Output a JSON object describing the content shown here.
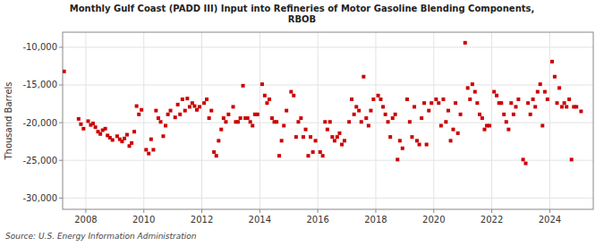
{
  "chart_data": {
    "type": "scatter",
    "title": "Monthly Gulf Coast (PADD III) Input into Refineries of Motor Gasoline Blending Components,\nRBOB",
    "ylabel": "Thousand Barrels",
    "annotations": [
      "Source: U.S. Energy Information Administration"
    ],
    "color": "#cc0000",
    "marker": "square",
    "grid": true,
    "xlim": [
      2007.2,
      2025.5
    ],
    "ylim": [
      -31500,
      -8000
    ],
    "xticks": [
      2008,
      2010,
      2012,
      2014,
      2016,
      2018,
      2020,
      2022,
      2024
    ],
    "yticks": [
      {
        "value": -30000,
        "label": "-30,000"
      },
      {
        "value": -25000,
        "label": "-25,000"
      },
      {
        "value": -20000,
        "label": "-20,000"
      },
      {
        "value": -15000,
        "label": "-15,000"
      },
      {
        "value": -10000,
        "label": "-10,000"
      }
    ],
    "x": [
      2007.25,
      2007.75,
      2007.83,
      2007.92,
      2008.08,
      2008.17,
      2008.25,
      2008.33,
      2008.42,
      2008.5,
      2008.58,
      2008.67,
      2008.75,
      2008.83,
      2008.92,
      2009.08,
      2009.17,
      2009.25,
      2009.33,
      2009.42,
      2009.5,
      2009.58,
      2009.67,
      2009.75,
      2009.83,
      2009.92,
      2010.08,
      2010.17,
      2010.25,
      2010.33,
      2010.42,
      2010.5,
      2010.58,
      2010.67,
      2010.75,
      2010.83,
      2010.92,
      2011.08,
      2011.17,
      2011.25,
      2011.33,
      2011.42,
      2011.5,
      2011.58,
      2011.67,
      2011.75,
      2011.83,
      2011.92,
      2012.08,
      2012.17,
      2012.25,
      2012.33,
      2012.42,
      2012.5,
      2012.58,
      2012.67,
      2012.75,
      2012.83,
      2012.92,
      2013.08,
      2013.17,
      2013.25,
      2013.33,
      2013.42,
      2013.5,
      2013.58,
      2013.67,
      2013.75,
      2013.83,
      2013.92,
      2014.08,
      2014.17,
      2014.25,
      2014.33,
      2014.42,
      2014.5,
      2014.58,
      2014.67,
      2014.75,
      2014.83,
      2014.92,
      2015.08,
      2015.17,
      2015.25,
      2015.33,
      2015.42,
      2015.5,
      2015.58,
      2015.67,
      2015.75,
      2015.83,
      2015.92,
      2016.08,
      2016.17,
      2016.25,
      2016.33,
      2016.42,
      2016.5,
      2016.58,
      2016.67,
      2016.75,
      2016.83,
      2016.92,
      2017.08,
      2017.17,
      2017.25,
      2017.33,
      2017.42,
      2017.5,
      2017.58,
      2017.67,
      2017.75,
      2017.83,
      2017.92,
      2018.08,
      2018.17,
      2018.25,
      2018.33,
      2018.42,
      2018.5,
      2018.58,
      2018.67,
      2018.75,
      2018.83,
      2018.92,
      2019.08,
      2019.17,
      2019.25,
      2019.33,
      2019.42,
      2019.5,
      2019.58,
      2019.67,
      2019.75,
      2019.83,
      2019.92,
      2020.08,
      2020.17,
      2020.25,
      2020.33,
      2020.42,
      2020.5,
      2020.58,
      2020.67,
      2020.75,
      2020.83,
      2020.92,
      2021.08,
      2021.17,
      2021.25,
      2021.33,
      2021.42,
      2021.5,
      2021.58,
      2021.67,
      2021.75,
      2021.83,
      2021.92,
      2022.08,
      2022.17,
      2022.25,
      2022.33,
      2022.42,
      2022.5,
      2022.58,
      2022.67,
      2022.75,
      2022.83,
      2022.92,
      2023.08,
      2023.17,
      2023.25,
      2023.33,
      2023.42,
      2023.5,
      2023.58,
      2023.67,
      2023.75,
      2023.83,
      2023.92,
      2024.08,
      2024.17,
      2024.25,
      2024.33,
      2024.42,
      2024.5,
      2024.58,
      2024.67,
      2024.75,
      2024.83,
      2024.92,
      2025.08
    ],
    "values": [
      -13200,
      -19500,
      -20200,
      -20800,
      -19800,
      -20300,
      -20100,
      -20600,
      -21200,
      -21500,
      -21000,
      -20800,
      -21700,
      -22000,
      -22300,
      -21800,
      -22200,
      -22500,
      -22100,
      -21600,
      -23100,
      -22700,
      -21200,
      -17800,
      -18900,
      -18300,
      -23600,
      -24100,
      -22200,
      -23600,
      -18400,
      -19400,
      -19900,
      -21800,
      -20400,
      -18900,
      -18400,
      -19300,
      -17600,
      -18900,
      -16900,
      -18400,
      -16800,
      -17900,
      -17400,
      -17800,
      -18300,
      -17900,
      -17400,
      -16900,
      -19400,
      -18400,
      -23900,
      -24400,
      -22400,
      -20900,
      -19400,
      -19900,
      -18900,
      -17900,
      -19900,
      -19900,
      -19400,
      -15100,
      -19400,
      -19400,
      -19900,
      -20400,
      -18900,
      -18900,
      -14900,
      -16400,
      -17400,
      -16900,
      -19400,
      -19900,
      -19900,
      -24400,
      -22400,
      -20400,
      -18400,
      -15900,
      -16400,
      -21900,
      -19900,
      -19400,
      -21900,
      -20900,
      -24400,
      -21900,
      -23900,
      -22400,
      -23900,
      -24400,
      -19900,
      -20900,
      -19900,
      -21900,
      -22400,
      -21900,
      -21400,
      -22900,
      -22400,
      -19900,
      -16900,
      -18900,
      -17900,
      -18400,
      -19900,
      -13900,
      -19400,
      -20400,
      -18400,
      -16900,
      -16400,
      -16900,
      -17900,
      -18900,
      -19900,
      -21900,
      -19400,
      -18900,
      -24900,
      -22400,
      -23400,
      -16900,
      -19900,
      -21900,
      -17900,
      -22400,
      -22900,
      -19400,
      -17400,
      -22900,
      -18400,
      -17400,
      -16900,
      -17400,
      -20400,
      -16900,
      -19900,
      -18400,
      -22400,
      -20900,
      -17400,
      -21400,
      -18900,
      -9400,
      -15400,
      -16900,
      -14900,
      -15900,
      -17400,
      -18900,
      -19400,
      -20900,
      -20400,
      -20400,
      -15900,
      -16400,
      -17400,
      -17400,
      -18900,
      -19900,
      -20900,
      -17400,
      -18900,
      -17900,
      -16900,
      -24900,
      -25400,
      -17400,
      -18900,
      -16900,
      -17900,
      -15900,
      -14900,
      -20400,
      -15900,
      -16900,
      -11900,
      -13900,
      -17400,
      -15400,
      -17900,
      -17400,
      -17900,
      -16900,
      -24900,
      -17900,
      -17900,
      -18500
    ]
  }
}
